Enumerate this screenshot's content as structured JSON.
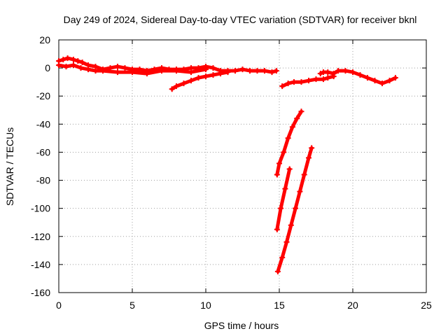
{
  "chart_data": {
    "type": "scatter",
    "title": "Day 249 of 2024, Sidereal Day-to-day VTEC variation (SDTVAR) for receiver bknl",
    "xlabel": "GPS time / hours",
    "ylabel": "SDTVAR / TECUs",
    "xlim": [
      0,
      25
    ],
    "ylim": [
      -160,
      20
    ],
    "xticks": [
      0,
      5,
      10,
      15,
      20,
      25
    ],
    "yticks": [
      -160,
      -140,
      -120,
      -100,
      -80,
      -60,
      -40,
      -20,
      0,
      20
    ],
    "grid": true,
    "legend": "none",
    "series_color": "#ff0000",
    "series": [
      {
        "x": [
          0.0,
          0.3,
          0.6,
          1.0,
          1.3,
          1.6,
          2.0,
          2.5,
          3.0,
          3.5,
          4.0,
          4.5,
          5.0,
          5.5,
          6.0,
          6.5,
          7.0,
          7.5,
          8.0,
          8.5,
          9.0,
          9.5,
          10.0,
          10.5,
          11.0,
          11.5,
          12.0,
          12.5,
          13.0,
          13.5,
          14.0,
          14.5,
          14.8
        ],
        "y": [
          5,
          6,
          7,
          6,
          5,
          4,
          2,
          1,
          -1,
          0,
          1,
          0,
          -1,
          -1,
          -2,
          -1,
          0,
          -1,
          -1,
          -1,
          0,
          0,
          1,
          0,
          -2,
          -2,
          -2,
          -1,
          -2,
          -2,
          -2,
          -3,
          -2
        ]
      },
      {
        "x": [
          0.0,
          0.5,
          1.0,
          1.5,
          2.0,
          2.5,
          3.0,
          4.0,
          5.0,
          6.0,
          7.0,
          8.0,
          9.0,
          10.0
        ],
        "y": [
          2,
          1,
          2,
          0,
          -1,
          -2,
          -2,
          -3,
          -3,
          -4,
          -2,
          -2,
          -3,
          -1
        ]
      },
      {
        "x": [
          7.7,
          8.0,
          8.5,
          9.0,
          9.5,
          10.0,
          10.5,
          11.0,
          11.5
        ],
        "y": [
          -15,
          -13,
          -11,
          -9,
          -7,
          -6,
          -5,
          -4,
          -3
        ]
      },
      {
        "x": [
          15.2,
          15.6,
          16.0,
          16.5,
          17.0,
          17.5,
          18.0,
          18.3,
          18.7
        ],
        "y": [
          -13,
          -11,
          -10,
          -10,
          -9,
          -8,
          -8,
          -7,
          -6
        ]
      },
      {
        "x": [
          17.8,
          18.0,
          18.3,
          18.7,
          19.0,
          19.5,
          20.0,
          20.5,
          21.0,
          21.5,
          22.0,
          22.5,
          22.9
        ],
        "y": [
          -4,
          -3,
          -3,
          -4,
          -2,
          -2,
          -3,
          -5,
          -7,
          -9,
          -11,
          -9,
          -7
        ]
      },
      {
        "x": [
          14.85,
          15.0,
          15.3,
          15.6,
          15.9,
          16.2,
          16.5
        ],
        "y": [
          -76,
          -68,
          -60,
          -50,
          -42,
          -36,
          -31
        ]
      },
      {
        "x": [
          14.85,
          15.1,
          15.4,
          15.7
        ],
        "y": [
          -115,
          -100,
          -86,
          -72
        ]
      },
      {
        "x": [
          14.9,
          15.2,
          15.5,
          15.8,
          16.1,
          16.4,
          16.7,
          17.0,
          17.2
        ],
        "y": [
          -145,
          -135,
          -124,
          -112,
          -100,
          -88,
          -76,
          -64,
          -57
        ]
      }
    ]
  }
}
